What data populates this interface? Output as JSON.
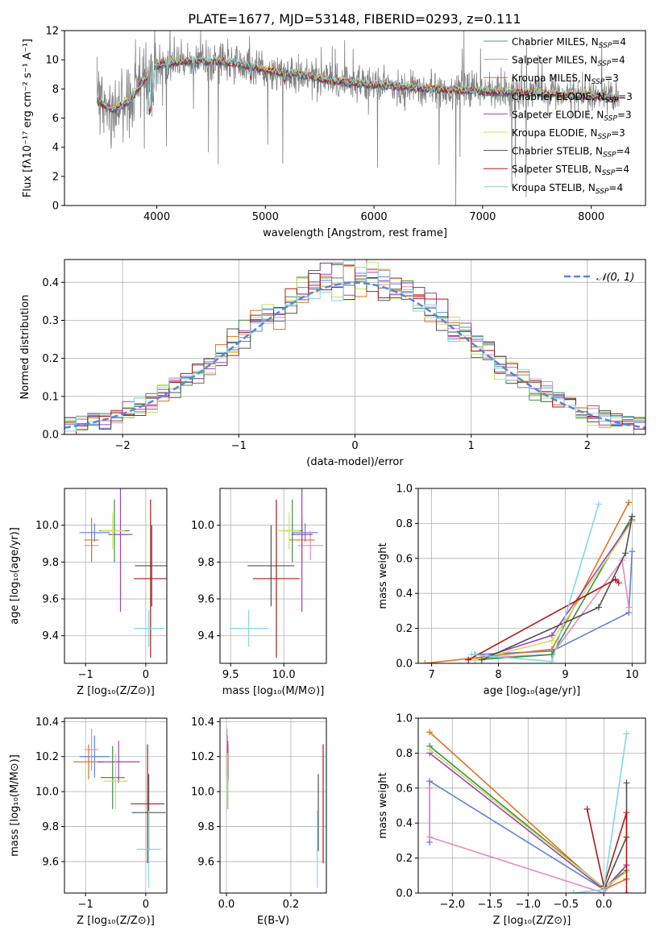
{
  "figure": {
    "title": "PLATE=1677, MJD=53148, FIBERID=0293, z=0.111"
  },
  "colors": {
    "data": "#808080",
    "models": [
      "#5b84d8",
      "#e888c0",
      "#e07020",
      "#3a9040",
      "#a040b8",
      "#c8e060",
      "#505050",
      "#b01818",
      "#80d8e0"
    ],
    "normal_curve": "#5b84d8",
    "grid": "#b0b0b0"
  },
  "chart_data": [
    {
      "id": "spectrum",
      "type": "line",
      "title": "PLATE=1677, MJD=53148, FIBERID=0293, z=0.111",
      "xlabel": "wavelength [Angstrom, rest frame]",
      "ylabel": "Flux [fλ10⁻¹⁷ erg cm⁻² s⁻¹ A⁻¹]",
      "xlim": [
        3150,
        8500
      ],
      "ylim": [
        0,
        12
      ],
      "xticks": [
        4000,
        5000,
        6000,
        7000,
        8000
      ],
      "yticks": [
        0,
        2,
        4,
        6,
        8,
        10,
        12
      ],
      "grid": false,
      "legend_position": "right",
      "legend": [
        {
          "label": "Chabrier MILES, N",
          "sub": "SSP",
          "tail": "=4"
        },
        {
          "label": "Salpeter MILES, N",
          "sub": "SSP",
          "tail": "=4"
        },
        {
          "label": "Kroupa MILES, N",
          "sub": "SSP",
          "tail": "=3"
        },
        {
          "label": "Chabrier ELODIE, N",
          "sub": "SSP",
          "tail": "=3"
        },
        {
          "label": "Salpeter ELODIE, N",
          "sub": "SSP",
          "tail": "=3"
        },
        {
          "label": "Kroupa ELODIE, N",
          "sub": "SSP",
          "tail": "=3"
        },
        {
          "label": "Chabrier STELIB, N",
          "sub": "SSP",
          "tail": "=4"
        },
        {
          "label": "Salpeter STELIB, N",
          "sub": "SSP",
          "tail": "=4"
        },
        {
          "label": "Kroupa STELIB, N",
          "sub": "SSP",
          "tail": "=4"
        }
      ],
      "continuum_anchors": [
        [
          3450,
          7.2
        ],
        [
          3600,
          6.6
        ],
        [
          3750,
          7.2
        ],
        [
          3900,
          8.8
        ],
        [
          4000,
          9.6
        ],
        [
          4200,
          9.9
        ],
        [
          4400,
          9.9
        ],
        [
          4600,
          9.9
        ],
        [
          4850,
          9.6
        ],
        [
          5000,
          9.3
        ],
        [
          5300,
          9.0
        ],
        [
          5600,
          8.6
        ],
        [
          6000,
          8.3
        ],
        [
          6400,
          8.1
        ],
        [
          6800,
          7.9
        ],
        [
          7200,
          7.8
        ],
        [
          7600,
          7.7
        ],
        [
          8000,
          7.5
        ],
        [
          8250,
          7.4
        ]
      ],
      "model_range": [
        3450,
        8250
      ],
      "data_range": [
        3450,
        8260
      ]
    },
    {
      "id": "residuals",
      "type": "line",
      "xlabel": "(data-model)/error",
      "ylabel": "Normed distribution",
      "xlim": [
        -2.5,
        2.5
      ],
      "ylim": [
        0,
        0.46
      ],
      "xticks": [
        -2,
        -1,
        0,
        1,
        2
      ],
      "yticks": [
        0.0,
        0.1,
        0.2,
        0.3,
        0.4
      ],
      "grid": true,
      "legend_position": "top-right",
      "normal_label": "𝒩(0, 1)",
      "bin_width": 0.1,
      "bin_start": -2.5,
      "histogram_mean_shape": "gaussian(0,1)"
    },
    {
      "id": "age_vs_Z",
      "type": "scatter",
      "xlabel": "Z [log₁₀(Z/Z⊙)]",
      "ylabel": "age  [log₁₀(age/yr)]",
      "xlim": [
        -1.35,
        0.35
      ],
      "ylim": [
        9.25,
        10.2
      ],
      "xticks": [
        -1,
        0
      ],
      "yticks": [
        9.4,
        9.6,
        9.8,
        10.0
      ],
      "grid": true,
      "points": [
        {
          "model": 0,
          "x": -0.85,
          "xerr": 0.25,
          "y": 9.96,
          "yerr": 0.05
        },
        {
          "model": 1,
          "x": -0.9,
          "xerr": 0.12,
          "y": 9.89,
          "yerr": 0.08
        },
        {
          "model": 2,
          "x": -0.9,
          "xerr": 0.12,
          "y": 9.92,
          "yerr": 0.12
        },
        {
          "model": 3,
          "x": -0.52,
          "xerr": 0.25,
          "y": 9.97,
          "yerr": 0.17
        },
        {
          "model": 4,
          "x": -0.42,
          "xerr": 0.2,
          "y": 9.95,
          "yerr": 0.42
        },
        {
          "model": 5,
          "x": -0.55,
          "xerr": 0.2,
          "y": 9.97,
          "yerr": 0.1
        },
        {
          "model": 6,
          "x": 0.1,
          "xerr": 0.28,
          "y": 9.78,
          "yerr": 0.22
        },
        {
          "model": 7,
          "x": 0.08,
          "xerr": 0.28,
          "y": 9.71,
          "yerr": 0.43
        },
        {
          "model": 8,
          "x": 0.05,
          "xerr": 0.25,
          "y": 9.44,
          "yerr": 0.1
        }
      ]
    },
    {
      "id": "age_vs_mass",
      "type": "scatter",
      "xlabel": "mass [log₁₀(M/M⊙)]",
      "ylabel": "",
      "xlim": [
        9.4,
        10.4
      ],
      "ylim": [
        9.25,
        10.2
      ],
      "xticks": [
        9.5,
        10.0
      ],
      "yticks": [
        9.4,
        9.6,
        9.8,
        10.0
      ],
      "grid": true,
      "points": [
        {
          "model": 0,
          "x": 10.2,
          "xerr": 0.12,
          "y": 9.96,
          "yerr": 0.05
        },
        {
          "model": 1,
          "x": 10.25,
          "xerr": 0.12,
          "y": 9.89,
          "yerr": 0.08
        },
        {
          "model": 2,
          "x": 10.17,
          "xerr": 0.12,
          "y": 9.92,
          "yerr": 0.12
        },
        {
          "model": 3,
          "x": 10.08,
          "xerr": 0.1,
          "y": 9.97,
          "yerr": 0.17
        },
        {
          "model": 4,
          "x": 10.17,
          "xerr": 0.1,
          "y": 9.95,
          "yerr": 0.42
        },
        {
          "model": 5,
          "x": 10.05,
          "xerr": 0.1,
          "y": 9.97,
          "yerr": 0.1
        },
        {
          "model": 6,
          "x": 9.88,
          "xerr": 0.22,
          "y": 9.78,
          "yerr": 0.22
        },
        {
          "model": 7,
          "x": 9.93,
          "xerr": 0.22,
          "y": 9.71,
          "yerr": 0.43
        },
        {
          "model": 8,
          "x": 9.67,
          "xerr": 0.18,
          "y": 9.44,
          "yerr": 0.1
        }
      ]
    },
    {
      "id": "mass_weight_vs_age",
      "type": "line",
      "xlabel": "age  [log₁₀(age/yr)]",
      "ylabel": "mass weight",
      "xlim": [
        6.8,
        10.2
      ],
      "ylim": [
        0,
        1
      ],
      "xticks": [
        7,
        8,
        9,
        10
      ],
      "yticks": [
        0.0,
        0.2,
        0.4,
        0.6,
        0.8,
        1.0
      ],
      "grid": true,
      "series": [
        {
          "model": 0,
          "x": [
            7.65,
            8.8,
            9.95,
            10.0
          ],
          "y": [
            0.05,
            0.07,
            0.29,
            0.64
          ]
        },
        {
          "model": 1,
          "x": [
            7.65,
            8.8,
            9.85,
            9.95
          ],
          "y": [
            0.03,
            0.05,
            0.59,
            0.32
          ]
        },
        {
          "model": 2,
          "x": [
            6.9,
            8.8,
            9.95
          ],
          "y": [
            0.0,
            0.08,
            0.92
          ]
        },
        {
          "model": 3,
          "x": [
            7.65,
            8.8,
            10.0
          ],
          "y": [
            0.02,
            0.05,
            0.84
          ]
        },
        {
          "model": 4,
          "x": [
            7.65,
            8.8,
            10.0
          ],
          "y": [
            0.02,
            0.16,
            0.82
          ]
        },
        {
          "model": 5,
          "x": [
            7.65,
            8.8,
            10.0
          ],
          "y": [
            0.02,
            0.13,
            0.81
          ]
        },
        {
          "model": 6,
          "x": [
            7.75,
            9.5,
            9.9,
            10.0
          ],
          "y": [
            0.02,
            0.32,
            0.63,
            0.84
          ]
        },
        {
          "model": 7,
          "x": [
            7.55,
            9.75,
            9.8
          ],
          "y": [
            0.02,
            0.48,
            0.46
          ]
        },
        {
          "model": 8,
          "x": [
            7.6,
            8.8,
            9.5
          ],
          "y": [
            0.05,
            0.01,
            0.91
          ]
        }
      ]
    },
    {
      "id": "mass_vs_Z",
      "type": "scatter",
      "xlabel": "Z [log₁₀(Z/Z⊙)]",
      "ylabel": "mass [log₁₀(M/M⊙)]",
      "xlim": [
        -1.35,
        0.35
      ],
      "ylim": [
        9.42,
        10.42
      ],
      "xticks": [
        -1,
        0
      ],
      "yticks": [
        9.6,
        9.8,
        10.0,
        10.2,
        10.4
      ],
      "grid": true,
      "points": [
        {
          "model": 0,
          "x": -0.85,
          "xerr": 0.25,
          "y": 10.2,
          "yerr": 0.12
        },
        {
          "model": 1,
          "x": -0.9,
          "xerr": 0.12,
          "y": 10.24,
          "yerr": 0.12
        },
        {
          "model": 2,
          "x": -0.95,
          "xerr": 0.25,
          "y": 10.17,
          "yerr": 0.1
        },
        {
          "model": 3,
          "x": -0.55,
          "xerr": 0.2,
          "y": 10.08,
          "yerr": 0.18
        },
        {
          "model": 4,
          "x": -0.45,
          "xerr": 0.35,
          "y": 10.17,
          "yerr": 0.12
        },
        {
          "model": 5,
          "x": -0.5,
          "xerr": 0.2,
          "y": 10.06,
          "yerr": 0.16
        },
        {
          "model": 6,
          "x": 0.05,
          "xerr": 0.28,
          "y": 9.88,
          "yerr": 0.22
        },
        {
          "model": 7,
          "x": 0.03,
          "xerr": 0.28,
          "y": 9.93,
          "yerr": 0.34
        },
        {
          "model": 8,
          "x": 0.05,
          "xerr": 0.2,
          "y": 9.67,
          "yerr": 0.22
        }
      ]
    },
    {
      "id": "mass_vs_ebv",
      "type": "scatter",
      "xlabel": "E(B-V)",
      "ylabel": "",
      "xlim": [
        -0.02,
        0.31
      ],
      "ylim": [
        9.42,
        10.42
      ],
      "xticks": [
        0.0,
        0.2
      ],
      "yticks": [
        9.6,
        9.8,
        10.0,
        10.2,
        10.4
      ],
      "grid": true,
      "points": [
        {
          "model": 0,
          "x": 0.003,
          "xerr": 0.001,
          "y": 10.2,
          "yerr": 0.12
        },
        {
          "model": 1,
          "x": 0.002,
          "xerr": 0.001,
          "y": 10.24,
          "yerr": 0.12
        },
        {
          "model": 2,
          "x": 0.005,
          "xerr": 0.001,
          "y": 10.17,
          "yerr": 0.1
        },
        {
          "model": 3,
          "x": 0.004,
          "xerr": 0.001,
          "y": 10.08,
          "yerr": 0.18
        },
        {
          "model": 4,
          "x": 0.004,
          "xerr": 0.001,
          "y": 10.17,
          "yerr": 0.12
        },
        {
          "model": 5,
          "x": 0.003,
          "xerr": 0.001,
          "y": 10.06,
          "yerr": 0.16
        },
        {
          "model": 6,
          "x": 0.285,
          "xerr": 0.001,
          "y": 9.88,
          "yerr": 0.22
        },
        {
          "model": 7,
          "x": 0.3,
          "xerr": 0.001,
          "y": 9.93,
          "yerr": 0.34
        },
        {
          "model": 8,
          "x": 0.282,
          "xerr": 0.001,
          "y": 9.67,
          "yerr": 0.22
        }
      ]
    },
    {
      "id": "mass_weight_vs_Z",
      "type": "line",
      "xlabel": "Z [log₁₀(Z/Z⊙)]",
      "ylabel": "mass weight",
      "xlim": [
        -2.45,
        0.55
      ],
      "ylim": [
        0,
        1
      ],
      "xticks": [
        -2.0,
        -1.5,
        -1.0,
        -0.5,
        0.0
      ],
      "yticks": [
        0.0,
        0.2,
        0.4,
        0.6,
        0.8,
        1.0
      ],
      "grid": true,
      "series": [
        {
          "model": 0,
          "x": [
            -2.3,
            -2.3,
            0.0
          ],
          "y": [
            0.29,
            0.64,
            0.02
          ]
        },
        {
          "model": 1,
          "x": [
            -2.3,
            -2.3,
            0.0,
            0.3
          ],
          "y": [
            0.6,
            0.32,
            0.0,
            0.16
          ]
        },
        {
          "model": 2,
          "x": [
            -2.3,
            0.0,
            0.3
          ],
          "y": [
            0.92,
            0.02,
            0.08
          ]
        },
        {
          "model": 3,
          "x": [
            -2.3,
            0.0,
            0.3
          ],
          "y": [
            0.84,
            0.03,
            0.13
          ]
        },
        {
          "model": 4,
          "x": [
            -2.3,
            0.0,
            0.3
          ],
          "y": [
            0.8,
            0.02,
            0.16
          ]
        },
        {
          "model": 5,
          "x": [
            -2.3,
            0.0,
            0.3
          ],
          "y": [
            0.82,
            0.03,
            0.12
          ]
        },
        {
          "model": 6,
          "x": [
            0.0,
            0.3,
            0.3,
            0.3
          ],
          "y": [
            0.02,
            0.32,
            0.63,
            0.32
          ]
        },
        {
          "model": 7,
          "x": [
            -0.22,
            0.0,
            0.3,
            0.3
          ],
          "y": [
            0.48,
            0.04,
            0.46,
            0.0
          ]
        },
        {
          "model": 8,
          "x": [
            -0.4,
            0.0,
            0.3
          ],
          "y": [
            0.0,
            0.02,
            0.91
          ]
        }
      ]
    }
  ]
}
